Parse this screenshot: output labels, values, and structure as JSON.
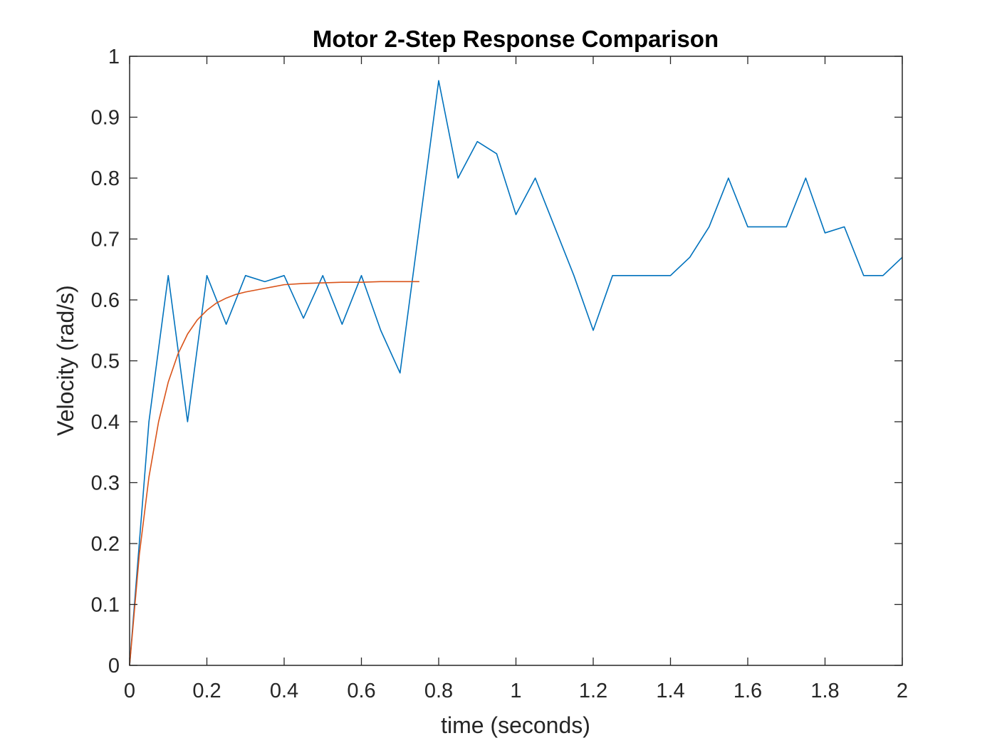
{
  "chart_data": {
    "type": "line",
    "title": "Motor 2-Step Response Comparison",
    "xlabel": "time (seconds)",
    "ylabel": "Velocity (rad/s)",
    "xlim": [
      0,
      2
    ],
    "ylim": [
      0,
      1
    ],
    "x_ticks": [
      "0",
      "0.2",
      "0.4",
      "0.6",
      "0.8",
      "1",
      "1.2",
      "1.4",
      "1.6",
      "1.8",
      "2"
    ],
    "y_ticks": [
      "0",
      "0.1",
      "0.2",
      "0.3",
      "0.4",
      "0.5",
      "0.6",
      "0.7",
      "0.8",
      "0.9",
      "1"
    ],
    "grid": false,
    "legend": "none",
    "series": [
      {
        "color": "#0072BD",
        "x": [
          0,
          0.05,
          0.1,
          0.15,
          0.2,
          0.25,
          0.3,
          0.35,
          0.4,
          0.45,
          0.5,
          0.55,
          0.6,
          0.65,
          0.7,
          0.75,
          0.8,
          0.85,
          0.9,
          0.95,
          1.0,
          1.05,
          1.1,
          1.15,
          1.2,
          1.25,
          1.3,
          1.35,
          1.4,
          1.45,
          1.5,
          1.55,
          1.6,
          1.65,
          1.7,
          1.75,
          1.8,
          1.85,
          1.9,
          1.95,
          2.0
        ],
        "y": [
          0,
          0.4,
          0.64,
          0.4,
          0.64,
          0.56,
          0.64,
          0.63,
          0.64,
          0.57,
          0.64,
          0.56,
          0.64,
          0.55,
          0.48,
          0.72,
          0.96,
          0.8,
          0.86,
          0.84,
          0.74,
          0.8,
          0.72,
          0.64,
          0.55,
          0.64,
          0.64,
          0.64,
          0.64,
          0.67,
          0.72,
          0.8,
          0.72,
          0.72,
          0.72,
          0.8,
          0.71,
          0.72,
          0.64,
          0.64,
          0.67
        ]
      },
      {
        "color": "#D95319",
        "x": [
          0,
          0.025,
          0.05,
          0.075,
          0.1,
          0.125,
          0.15,
          0.175,
          0.2,
          0.225,
          0.25,
          0.275,
          0.3,
          0.35,
          0.4,
          0.45,
          0.5,
          0.55,
          0.6,
          0.65,
          0.7,
          0.75
        ],
        "y": [
          0,
          0.181,
          0.309,
          0.4,
          0.465,
          0.511,
          0.544,
          0.567,
          0.583,
          0.595,
          0.603,
          0.609,
          0.613,
          0.619,
          0.625,
          0.627,
          0.628,
          0.629,
          0.629,
          0.63,
          0.63,
          0.63
        ]
      }
    ]
  }
}
